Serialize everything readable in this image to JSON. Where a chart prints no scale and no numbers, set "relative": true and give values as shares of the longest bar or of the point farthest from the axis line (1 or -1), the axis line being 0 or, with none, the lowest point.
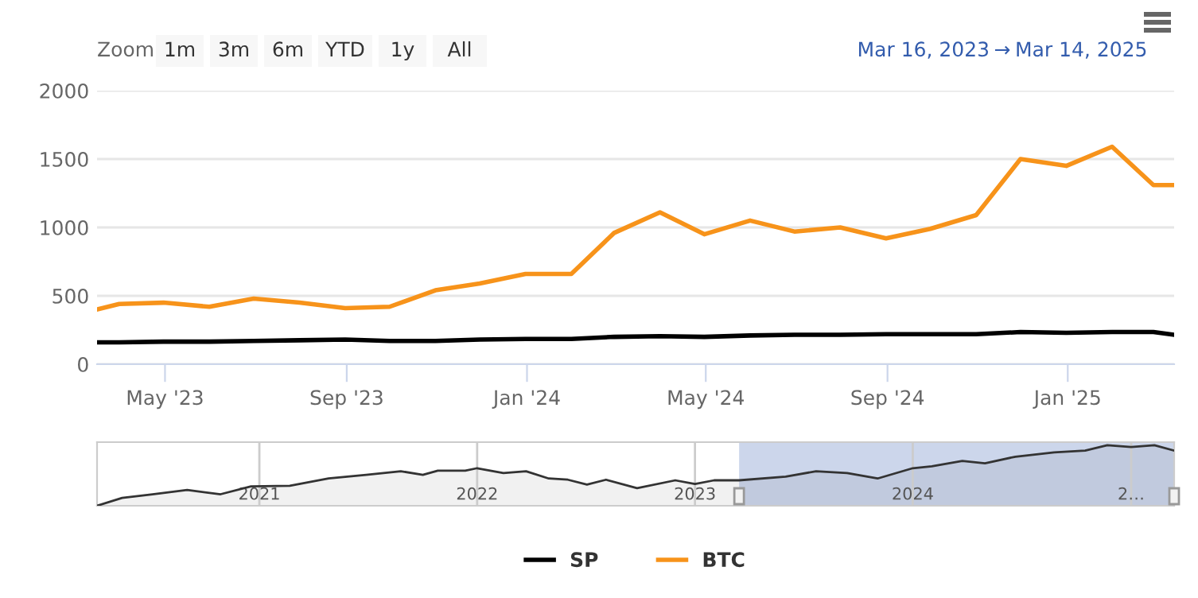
{
  "chart_data": [
    {
      "type": "line",
      "x": [
        "2023-03-16",
        "2023-03-31",
        "2023-04-30",
        "2023-05-31",
        "2023-06-30",
        "2023-07-31",
        "2023-08-31",
        "2023-09-30",
        "2023-10-31",
        "2023-11-30",
        "2023-12-31",
        "2024-01-31",
        "2024-02-29",
        "2024-03-31",
        "2024-04-30",
        "2024-05-31",
        "2024-06-30",
        "2024-07-31",
        "2024-08-31",
        "2024-09-30",
        "2024-10-31",
        "2024-11-30",
        "2024-12-31",
        "2025-01-31",
        "2025-02-28",
        "2025-03-14"
      ],
      "series": [
        {
          "name": "SP",
          "color": "#000000",
          "values": [
            160,
            160,
            165,
            165,
            170,
            175,
            180,
            170,
            170,
            180,
            185,
            185,
            200,
            205,
            200,
            210,
            215,
            215,
            220,
            220,
            220,
            235,
            230,
            235,
            235,
            215
          ]
        },
        {
          "name": "BTC",
          "color": "#f7931a",
          "values": [
            400,
            440,
            450,
            420,
            480,
            450,
            410,
            420,
            540,
            590,
            660,
            660,
            960,
            1110,
            950,
            1050,
            970,
            1000,
            920,
            990,
            1090,
            1500,
            1450,
            1590,
            1310,
            1310
          ]
        }
      ],
      "xlim": [
        "2023-03-16",
        "2025-03-14"
      ],
      "xticks": [
        {
          "value": "2023-05-01",
          "label": "May '23"
        },
        {
          "value": "2023-09-01",
          "label": "Sep '23"
        },
        {
          "value": "2024-01-01",
          "label": "Jan '24"
        },
        {
          "value": "2024-05-01",
          "label": "May '24"
        },
        {
          "value": "2024-09-01",
          "label": "Sep '24"
        },
        {
          "value": "2025-01-01",
          "label": "Jan '25"
        }
      ],
      "ylim": [
        0,
        2000
      ],
      "yticks": [
        0,
        500,
        1000,
        1500,
        2000
      ],
      "grid": "y",
      "legend": "bottom",
      "marker": "none",
      "line_style": "solid",
      "annotations": [
        "Zoom",
        "1m",
        "3m",
        "6m",
        "YTD",
        "1y",
        "All",
        "Mar 16, 2023",
        "→",
        "Mar 14, 2025"
      ]
    },
    {
      "type": "area",
      "relative": true,
      "x": [
        "2020-04-04",
        "2020-05-16",
        "2020-07-06",
        "2020-09-02",
        "2020-10-28",
        "2020-12-18",
        "2021-02-21",
        "2021-04-27",
        "2021-06-29",
        "2021-08-26",
        "2021-10-02",
        "2021-10-27",
        "2021-12-12",
        "2022-01-01",
        "2022-02-14",
        "2022-03-24",
        "2022-05-01",
        "2022-06-02",
        "2022-07-04",
        "2022-08-05",
        "2022-09-26",
        "2022-11-29",
        "2023-01-01",
        "2023-02-02",
        "2023-03-16",
        "2023-06-02",
        "2023-07-23",
        "2023-09-13",
        "2023-11-03",
        "2024-01-01",
        "2024-02-02",
        "2024-03-24",
        "2024-05-01",
        "2024-06-21",
        "2024-08-25",
        "2024-10-16",
        "2024-11-22",
        "2025-01-01",
        "2025-02-09",
        "2025-03-14"
      ],
      "series": [
        {
          "color": "#333333",
          "values": [
            0,
            0.13,
            0.19,
            0.26,
            0.19,
            0.32,
            0.33,
            0.45,
            0.51,
            0.57,
            0.51,
            0.58,
            0.58,
            0.62,
            0.54,
            0.57,
            0.45,
            0.43,
            0.35,
            0.43,
            0.29,
            0.42,
            0.36,
            0.42,
            0.42,
            0.48,
            0.57,
            0.54,
            0.45,
            0.62,
            0.65,
            0.74,
            0.7,
            0.81,
            0.88,
            0.91,
            1.0,
            0.97,
            1.0,
            0.91
          ]
        }
      ],
      "xlim": [
        "2020-04-04",
        "2025-03-14"
      ],
      "xticks": [
        {
          "value": "2021-01-01",
          "label": "2021"
        },
        {
          "value": "2022-01-01",
          "label": "2022"
        },
        {
          "value": "2023-01-01",
          "label": "2023"
        },
        {
          "value": "2024-01-01",
          "label": "2024"
        },
        {
          "value": "2025-01-01",
          "label": "2…"
        }
      ],
      "grid": "x",
      "tick_labels": "x",
      "bands": [
        {
          "axis": "x",
          "from": "2023-03-16",
          "to": "2025-03-14",
          "color": "#ccd6eb"
        }
      ]
    }
  ]
}
